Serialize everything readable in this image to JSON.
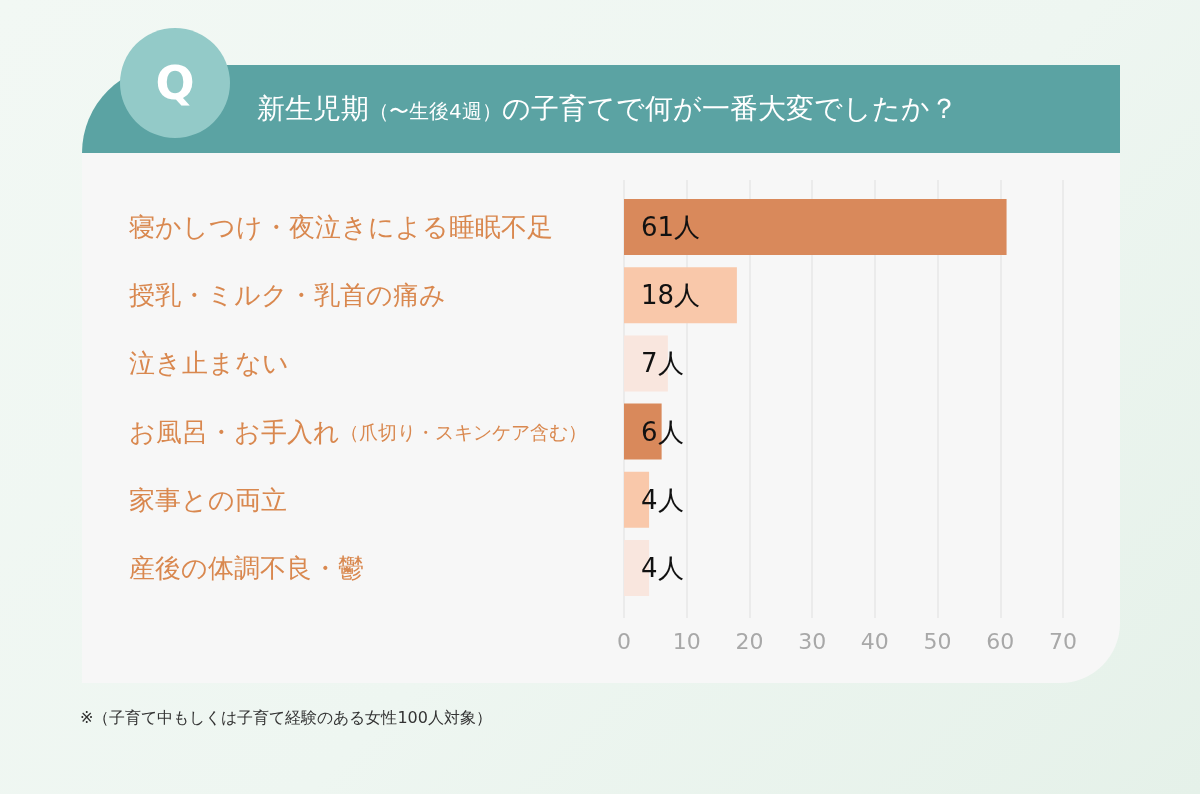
{
  "chart_data": {
    "type": "bar",
    "orientation": "horizontal",
    "title": "新生児期（〜生後4週）の子育てで何が一番大変でしたか？",
    "categories": [
      "寝かしつけ・夜泣きによる睡眠不足",
      "授乳・ミルク・乳首の痛み",
      "泣き止まない",
      "お風呂・お手入れ（爪切り・スキンケア含む）",
      "家事との両立",
      "産後の体調不良・鬱"
    ],
    "values": [
      61,
      18,
      7,
      6,
      4,
      4
    ],
    "colors": [
      "#d9895b",
      "#f9c8aa",
      "#f9e6de",
      "#d9895b",
      "#f9c8aa",
      "#f9e6de"
    ],
    "value_labels": [
      "61人",
      "18人",
      "7人",
      "6人",
      "4人",
      "4人"
    ],
    "xlim": [
      0,
      70
    ],
    "xticks": [
      0,
      10,
      20,
      30,
      40,
      50,
      60,
      70
    ],
    "grid": "x",
    "annotations": [
      "Q",
      "※（子育て中もしくは子育て経験のある女性100人対象）"
    ]
  }
}
